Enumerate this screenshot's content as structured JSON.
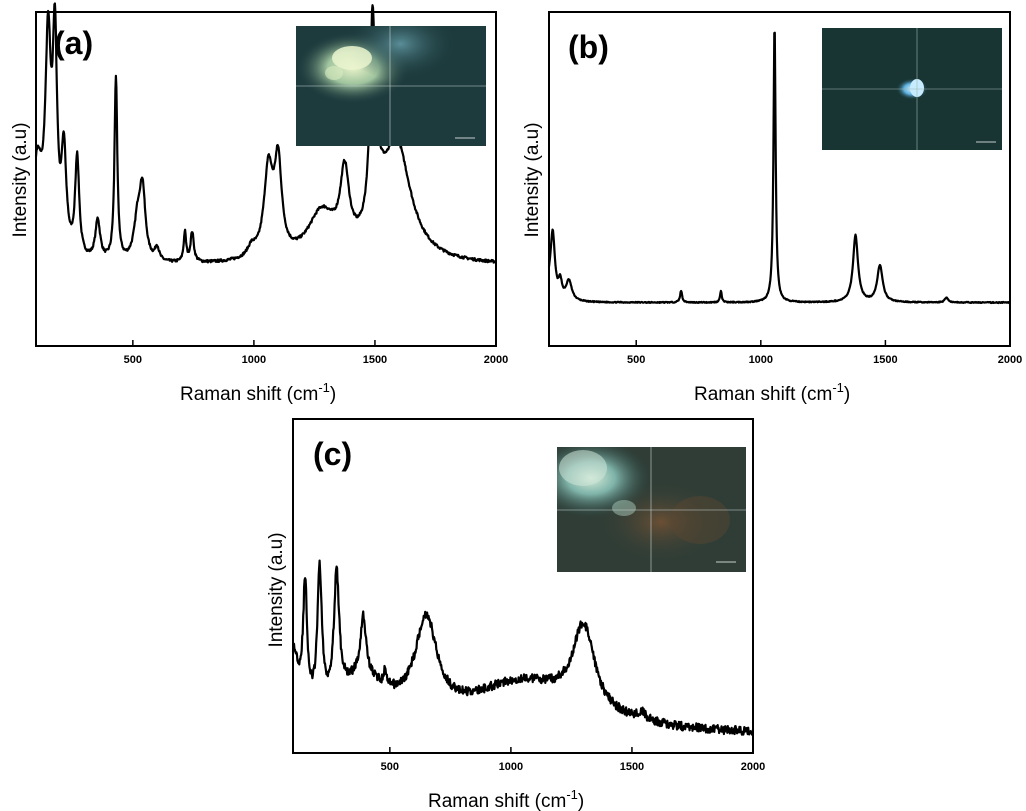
{
  "chart_data": [
    {
      "type": "line",
      "panel_label": "(a)",
      "xlabel": "Raman shift (cm",
      "xlabel_sup": "-1",
      "xlabel_close": ")",
      "ylabel": "Intensity (a.u)",
      "xlim": [
        100,
        2000
      ],
      "ylim": [
        0,
        100
      ],
      "xticks": [
        500,
        1000,
        1500,
        2000
      ],
      "xtick_labels": [
        "500",
        "1000",
        "1500",
        "2000"
      ],
      "baseline": 24,
      "noise": 0.4,
      "inset": "microscope-image",
      "peaks": [
        {
          "x": 105,
          "h": 28,
          "w": 25
        },
        {
          "x": 150,
          "h": 60,
          "w": 14
        },
        {
          "x": 178,
          "h": 60,
          "w": 11
        },
        {
          "x": 215,
          "h": 30,
          "w": 12
        },
        {
          "x": 270,
          "h": 30,
          "w": 10
        },
        {
          "x": 355,
          "h": 12,
          "w": 12
        },
        {
          "x": 430,
          "h": 55,
          "w": 7
        },
        {
          "x": 520,
          "h": 12,
          "w": 18
        },
        {
          "x": 540,
          "h": 20,
          "w": 14
        },
        {
          "x": 600,
          "h": 4,
          "w": 10
        },
        {
          "x": 715,
          "h": 9,
          "w": 6
        },
        {
          "x": 745,
          "h": 9,
          "w": 8
        },
        {
          "x": 990,
          "h": 3,
          "w": 20
        },
        {
          "x": 1060,
          "h": 26,
          "w": 22
        },
        {
          "x": 1100,
          "h": 27,
          "w": 18
        },
        {
          "x": 1280,
          "h": 14,
          "w": 70
        },
        {
          "x": 1375,
          "h": 22,
          "w": 22
        },
        {
          "x": 1490,
          "h": 60,
          "w": 13
        },
        {
          "x": 1520,
          "h": 8,
          "w": 30
        },
        {
          "x": 1590,
          "h": 35,
          "w": 70
        }
      ]
    },
    {
      "type": "line",
      "panel_label": "(b)",
      "xlabel": "Raman shift (cm",
      "xlabel_sup": "-1",
      "xlabel_close": ")",
      "ylabel": "Intensity (a.u)",
      "xlim": [
        150,
        2000
      ],
      "ylim": [
        0,
        100
      ],
      "xticks": [
        500,
        1000,
        1500,
        2000
      ],
      "xtick_labels": [
        "500",
        "1000",
        "1500",
        "2000"
      ],
      "baseline": 13,
      "noise": 0.15,
      "inset": "microscope-image",
      "peaks": [
        {
          "x": 150,
          "h": 5,
          "w": 20
        },
        {
          "x": 165,
          "h": 18,
          "w": 10
        },
        {
          "x": 195,
          "h": 5,
          "w": 8
        },
        {
          "x": 230,
          "h": 6,
          "w": 14
        },
        {
          "x": 680,
          "h": 3.5,
          "w": 5
        },
        {
          "x": 840,
          "h": 3.5,
          "w": 4
        },
        {
          "x": 1055,
          "h": 84,
          "w": 5
        },
        {
          "x": 1380,
          "h": 20,
          "w": 12
        },
        {
          "x": 1478,
          "h": 11,
          "w": 13
        },
        {
          "x": 1745,
          "h": 1.5,
          "w": 8
        }
      ]
    },
    {
      "type": "line",
      "panel_label": "(c)",
      "xlabel": "Raman shift (cm",
      "xlabel_sup": "-1",
      "xlabel_close": ")",
      "ylabel": "Intensity (a.u)",
      "xlim": [
        100,
        2000
      ],
      "ylim": [
        0,
        100
      ],
      "xticks": [
        500,
        1000,
        1500,
        2000
      ],
      "xtick_labels": [
        "500",
        "1000",
        "1500",
        "2000"
      ],
      "baseline": 5,
      "noise": 1.3,
      "inset": "microscope-image",
      "peaks": [
        {
          "x": 100,
          "h": 20,
          "w": 30
        },
        {
          "x": 150,
          "h": 35,
          "w": 10
        },
        {
          "x": 210,
          "h": 40,
          "w": 11
        },
        {
          "x": 280,
          "h": 36,
          "w": 13
        },
        {
          "x": 390,
          "h": 18,
          "w": 14
        },
        {
          "x": 380,
          "h": 14,
          "w": 150
        },
        {
          "x": 480,
          "h": 4,
          "w": 6
        },
        {
          "x": 650,
          "h": 28,
          "w": 55
        },
        {
          "x": 1050,
          "h": 15,
          "w": 280
        },
        {
          "x": 1300,
          "h": 25,
          "w": 55
        },
        {
          "x": 1540,
          "h": 2.5,
          "w": 20
        }
      ]
    }
  ]
}
